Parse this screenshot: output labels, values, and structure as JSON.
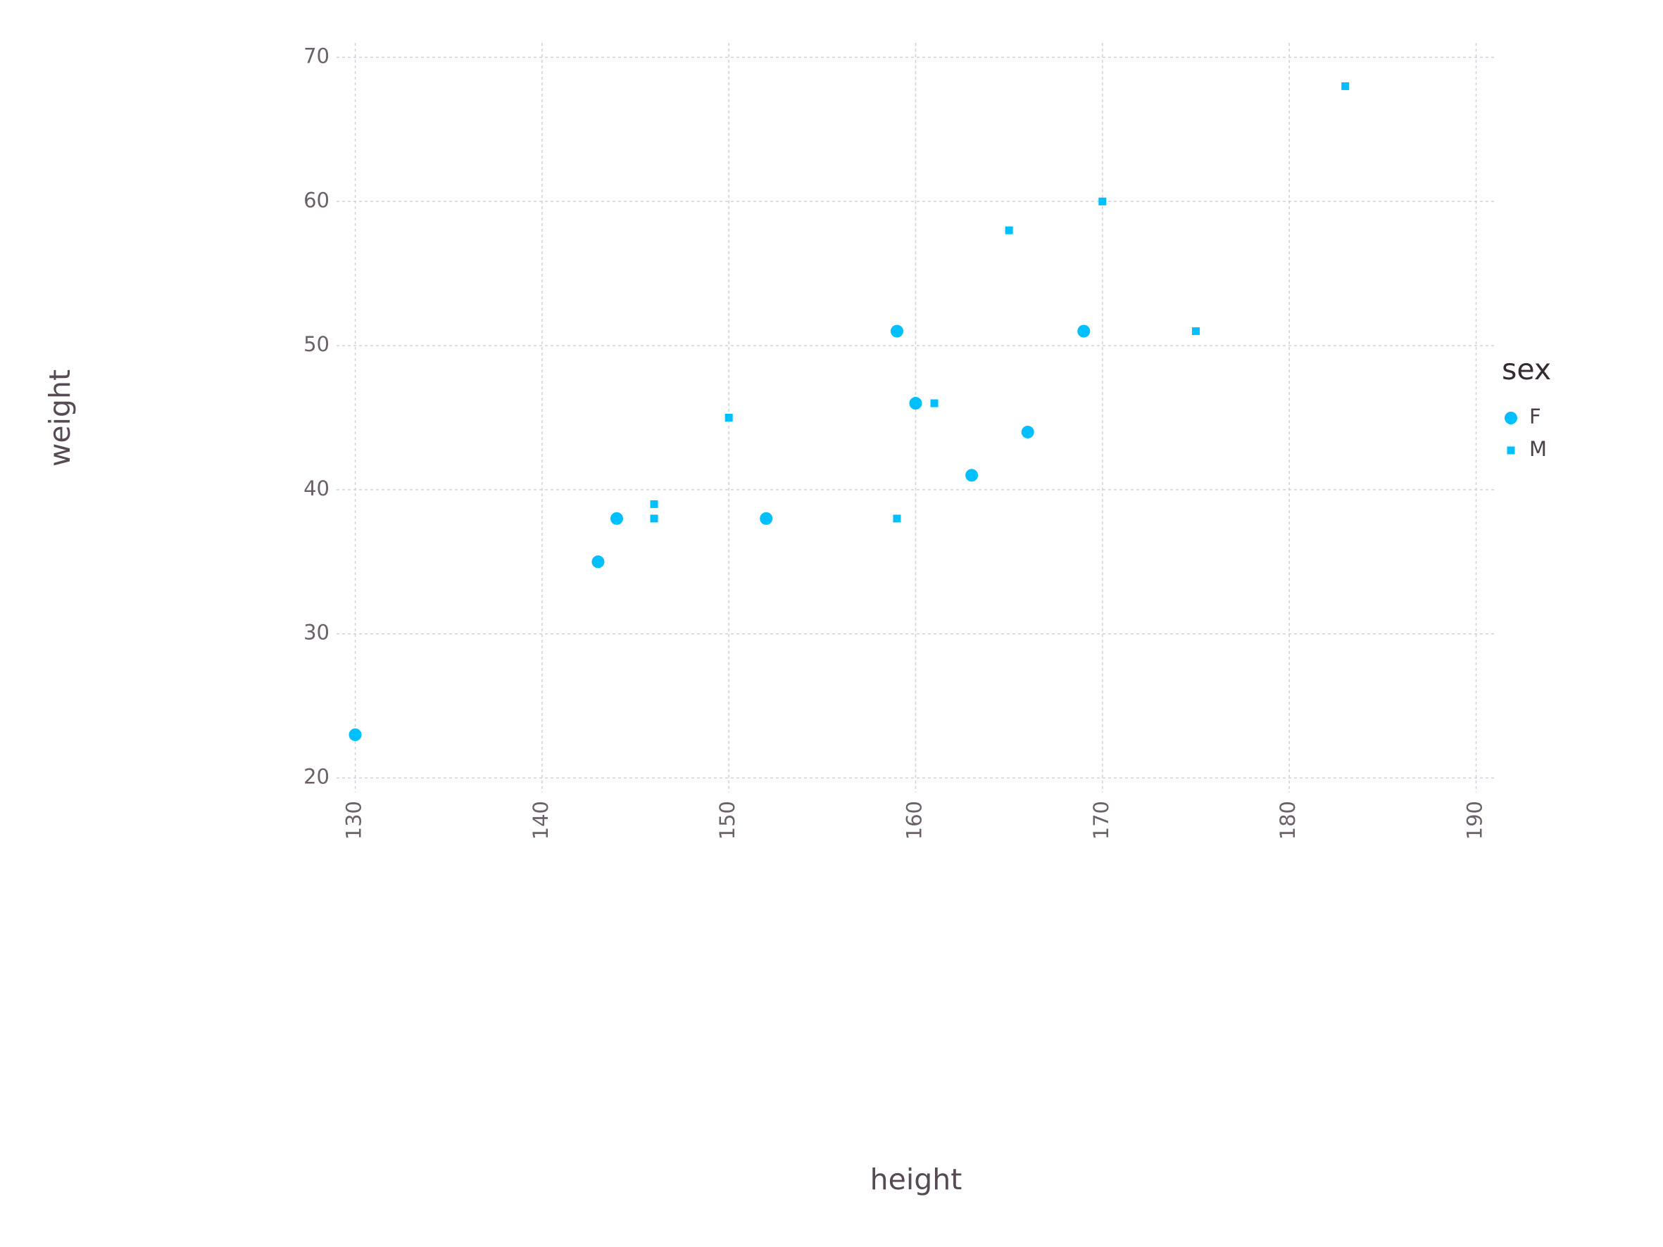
{
  "chart_data": {
    "type": "scatter",
    "xlabel": "height",
    "ylabel": "weight",
    "legend_title": "sex",
    "legend": "right",
    "series": [
      {
        "name": "F",
        "color": "#00bfff",
        "marker": "circle",
        "x": [
          130,
          143,
          144,
          152,
          159,
          160,
          163,
          166,
          169
        ],
        "values": [
          23,
          35,
          38,
          38,
          51,
          46,
          41,
          44,
          51
        ]
      },
      {
        "name": "M",
        "color": "#00bfff",
        "marker": "square",
        "x": [
          146,
          146,
          150,
          159,
          161,
          165,
          170,
          175,
          183
        ],
        "values": [
          39,
          38,
          45,
          38,
          46,
          58,
          60,
          51,
          68
        ]
      }
    ],
    "xlim": [
      129,
      191
    ],
    "xticks": [
      130,
      140,
      150,
      160,
      170,
      180,
      190
    ],
    "ylim": [
      19,
      71
    ],
    "yticks": [
      20,
      30,
      40,
      50,
      60,
      70
    ],
    "grid": true
  }
}
